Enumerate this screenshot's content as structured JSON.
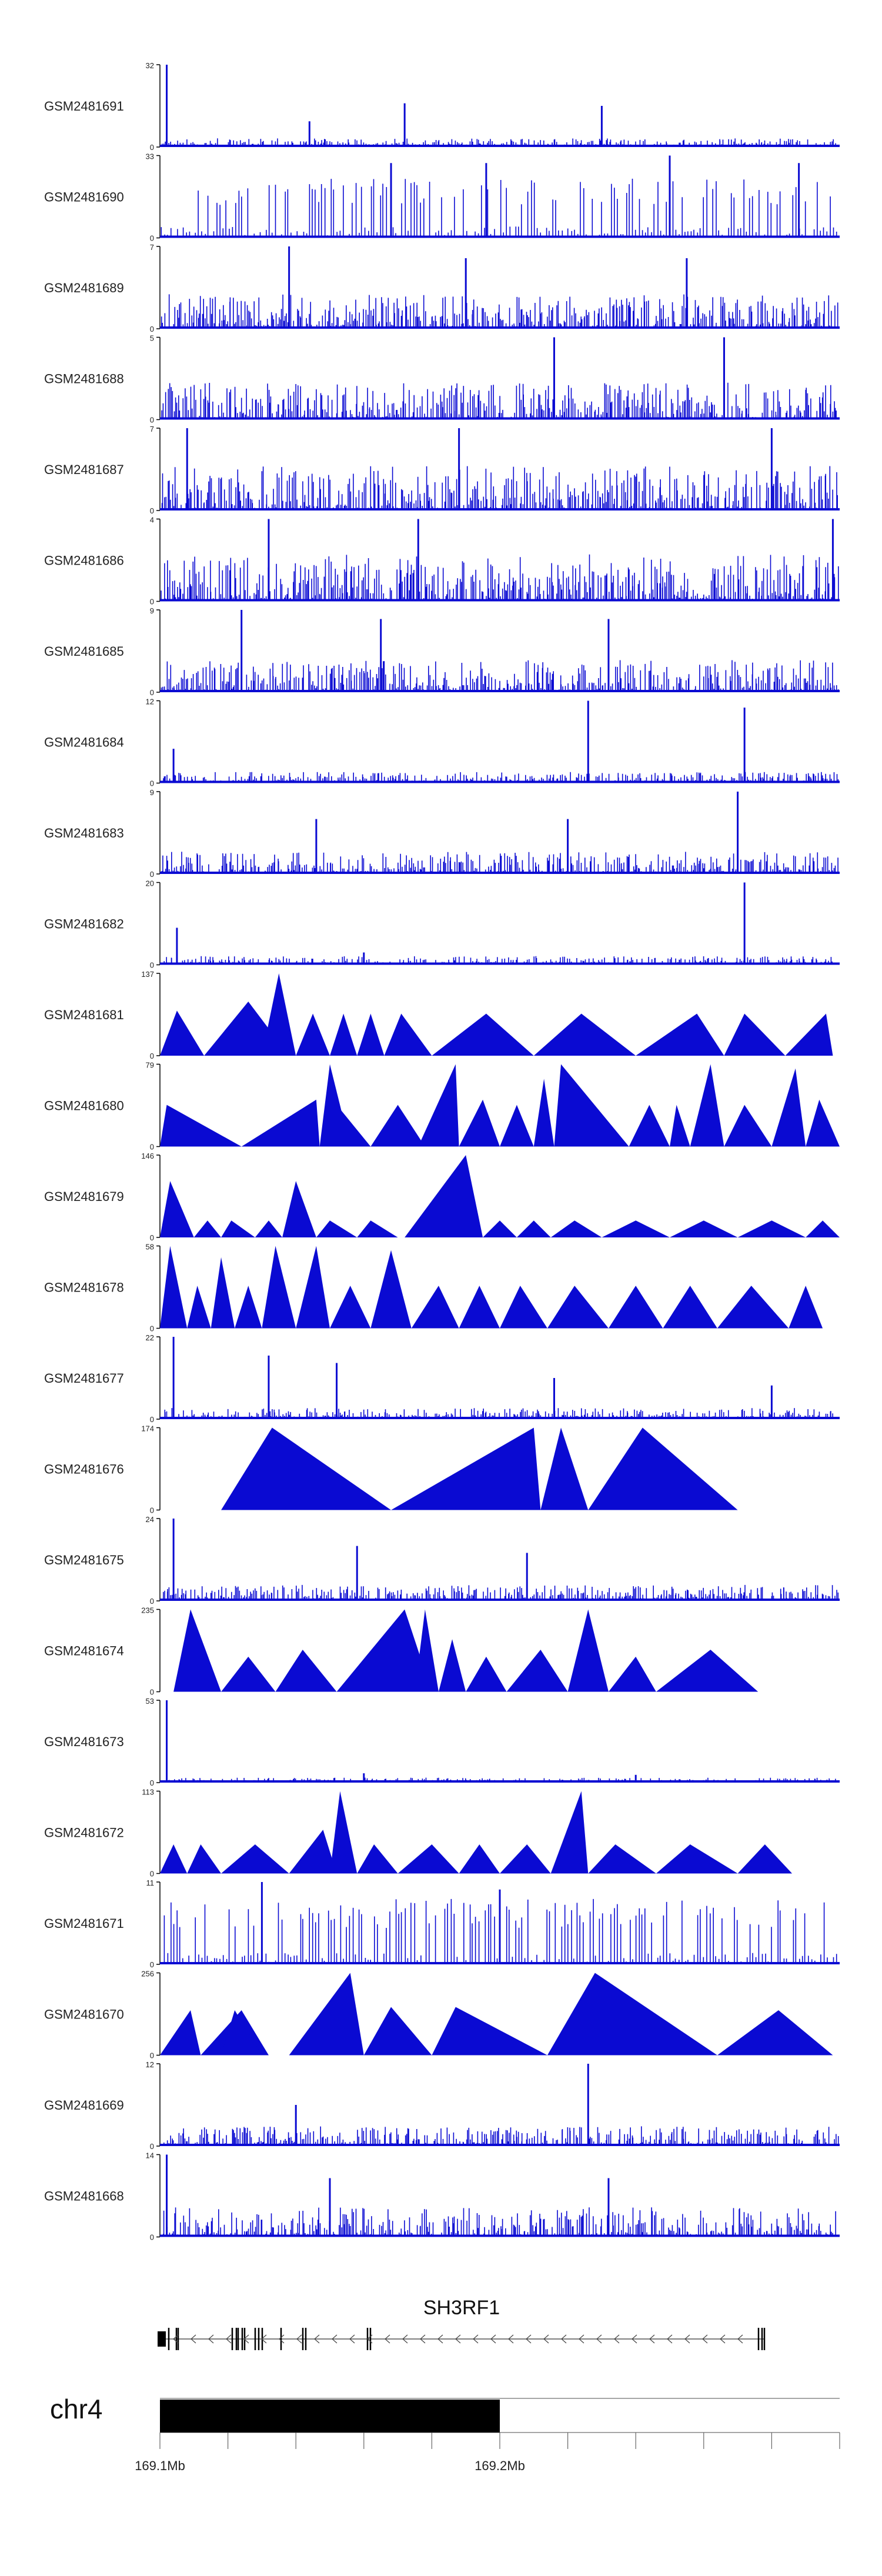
{
  "chart_data": {
    "type": "area",
    "title": "",
    "region": {
      "chrom": "chr4",
      "start_mb": 169.1,
      "end_mb": 169.3
    },
    "colors": {
      "signal": "#0a0ad2",
      "ideogram": "#000000",
      "axis": "#000000",
      "grid": "#808080"
    },
    "tracks": [
      {
        "name": "GSM2481691",
        "ymax": "32",
        "style": "dense",
        "seed": 11,
        "base": 0.07,
        "spikes": [
          [
            169.102,
            32
          ],
          [
            169.144,
            10
          ],
          [
            169.172,
            17
          ],
          [
            169.23,
            16
          ]
        ]
      },
      {
        "name": "GSM2481690",
        "ymax": "33",
        "style": "sparse",
        "seed": 12,
        "base": 0.45,
        "spikes": [
          [
            169.168,
            30
          ],
          [
            169.196,
            30
          ],
          [
            169.25,
            33
          ],
          [
            169.288,
            30
          ]
        ]
      },
      {
        "name": "GSM2481689",
        "ymax": "7",
        "style": "dense",
        "seed": 13,
        "base": 0.28,
        "spikes": [
          [
            169.138,
            7
          ],
          [
            169.19,
            6
          ],
          [
            169.255,
            6
          ]
        ]
      },
      {
        "name": "GSM2481688",
        "ymax": "5",
        "style": "dense",
        "seed": 14,
        "base": 0.3,
        "spikes": [
          [
            169.216,
            5
          ],
          [
            169.266,
            5
          ]
        ]
      },
      {
        "name": "GSM2481687",
        "ymax": "7",
        "style": "dense",
        "seed": 15,
        "base": 0.36,
        "spikes": [
          [
            169.108,
            7
          ],
          [
            169.188,
            7
          ],
          [
            169.28,
            7
          ]
        ]
      },
      {
        "name": "GSM2481686",
        "ymax": "4",
        "style": "dense",
        "seed": 16,
        "base": 0.38,
        "spikes": [
          [
            169.132,
            4
          ],
          [
            169.176,
            4
          ],
          [
            169.298,
            4
          ]
        ]
      },
      {
        "name": "GSM2481685",
        "ymax": "9",
        "style": "dense",
        "seed": 17,
        "base": 0.26,
        "spikes": [
          [
            169.124,
            9
          ],
          [
            169.165,
            8
          ],
          [
            169.232,
            8
          ]
        ]
      },
      {
        "name": "GSM2481684",
        "ymax": "12",
        "style": "dense",
        "seed": 18,
        "base": 0.09,
        "spikes": [
          [
            169.104,
            5
          ],
          [
            169.226,
            12
          ],
          [
            169.272,
            11
          ]
        ]
      },
      {
        "name": "GSM2481683",
        "ymax": "9",
        "style": "dense",
        "seed": 19,
        "base": 0.18,
        "spikes": [
          [
            169.146,
            6
          ],
          [
            169.22,
            6
          ],
          [
            169.27,
            9
          ]
        ]
      },
      {
        "name": "GSM2481682",
        "ymax": "20",
        "style": "dense",
        "seed": 20,
        "base": 0.07,
        "spikes": [
          [
            169.105,
            9
          ],
          [
            169.16,
            3
          ],
          [
            169.272,
            20
          ]
        ]
      },
      {
        "name": "GSM2481681",
        "ymax": "137",
        "style": "triangles",
        "seed": 21,
        "peaks": [
          [
            169.1,
            169.105,
            169.113,
            75
          ],
          [
            169.113,
            169.126,
            169.138,
            90
          ],
          [
            169.13,
            169.135,
            169.14,
            137
          ],
          [
            169.14,
            169.145,
            169.15,
            70
          ],
          [
            169.15,
            169.154,
            169.158,
            70
          ],
          [
            169.158,
            169.162,
            169.166,
            70
          ],
          [
            169.166,
            169.171,
            169.18,
            70
          ],
          [
            169.18,
            169.196,
            169.21,
            70
          ],
          [
            169.21,
            169.224,
            169.24,
            70
          ],
          [
            169.24,
            169.258,
            169.266,
            70
          ],
          [
            169.266,
            169.272,
            169.284,
            70
          ],
          [
            169.284,
            169.296,
            169.298,
            70
          ]
        ]
      },
      {
        "name": "GSM2481680",
        "ymax": "79",
        "style": "triangles",
        "seed": 22,
        "peaks": [
          [
            169.1,
            169.102,
            169.124,
            40
          ],
          [
            169.124,
            169.146,
            169.147,
            45
          ],
          [
            169.147,
            169.15,
            169.156,
            79
          ],
          [
            169.15,
            169.152,
            169.162,
            40
          ],
          [
            169.162,
            169.17,
            169.178,
            40
          ],
          [
            169.176,
            169.187,
            169.188,
            79
          ],
          [
            169.188,
            169.195,
            169.2,
            45
          ],
          [
            169.2,
            169.205,
            169.21,
            40
          ],
          [
            169.21,
            169.213,
            169.216,
            65
          ],
          [
            169.216,
            169.218,
            169.238,
            79
          ],
          [
            169.238,
            169.244,
            169.25,
            40
          ],
          [
            169.25,
            169.252,
            169.256,
            40
          ],
          [
            169.256,
            169.262,
            169.266,
            79
          ],
          [
            169.266,
            169.272,
            169.28,
            40
          ],
          [
            169.28,
            169.287,
            169.29,
            75
          ],
          [
            169.29,
            169.294,
            169.3,
            45
          ]
        ]
      },
      {
        "name": "GSM2481679",
        "ymax": "146",
        "style": "triangles",
        "seed": 23,
        "peaks": [
          [
            169.1,
            169.103,
            169.11,
            100
          ],
          [
            169.11,
            169.114,
            169.118,
            30
          ],
          [
            169.118,
            169.121,
            169.128,
            30
          ],
          [
            169.128,
            169.132,
            169.136,
            30
          ],
          [
            169.136,
            169.14,
            169.146,
            100
          ],
          [
            169.146,
            169.15,
            169.158,
            30
          ],
          [
            169.158,
            169.162,
            169.17,
            30
          ],
          [
            169.172,
            169.19,
            169.195,
            146
          ],
          [
            169.195,
            169.2,
            169.205,
            30
          ],
          [
            169.205,
            169.21,
            169.215,
            30
          ],
          [
            169.215,
            169.222,
            169.23,
            30
          ],
          [
            169.23,
            169.24,
            169.25,
            30
          ],
          [
            169.25,
            169.26,
            169.27,
            30
          ],
          [
            169.27,
            169.28,
            169.29,
            30
          ],
          [
            169.29,
            169.295,
            169.3,
            30
          ]
        ]
      },
      {
        "name": "GSM2481678",
        "ymax": "58",
        "style": "triangles",
        "seed": 24,
        "peaks": [
          [
            169.1,
            169.103,
            169.108,
            58
          ],
          [
            169.108,
            169.111,
            169.115,
            30
          ],
          [
            169.115,
            169.118,
            169.122,
            50
          ],
          [
            169.122,
            169.126,
            169.13,
            30
          ],
          [
            169.13,
            169.134,
            169.14,
            58
          ],
          [
            169.14,
            169.146,
            169.15,
            58
          ],
          [
            169.15,
            169.156,
            169.162,
            30
          ],
          [
            169.162,
            169.168,
            169.174,
            55
          ],
          [
            169.174,
            169.182,
            169.188,
            30
          ],
          [
            169.188,
            169.194,
            169.2,
            30
          ],
          [
            169.2,
            169.206,
            169.214,
            30
          ],
          [
            169.214,
            169.222,
            169.232,
            30
          ],
          [
            169.232,
            169.24,
            169.248,
            30
          ],
          [
            169.248,
            169.256,
            169.264,
            30
          ],
          [
            169.264,
            169.274,
            169.285,
            30
          ],
          [
            169.285,
            169.29,
            169.295,
            30
          ]
        ]
      },
      {
        "name": "GSM2481677",
        "ymax": "22",
        "style": "dense",
        "seed": 25,
        "base": 0.09,
        "spikes": [
          [
            169.104,
            22
          ],
          [
            169.132,
            17
          ],
          [
            169.152,
            15
          ],
          [
            169.216,
            11
          ],
          [
            169.28,
            9
          ]
        ]
      },
      {
        "name": "GSM2481676",
        "ymax": "174",
        "style": "triangles",
        "seed": 26,
        "peaks": [
          [
            169.118,
            169.133,
            169.168,
            174
          ],
          [
            169.168,
            169.21,
            169.212,
            174
          ],
          [
            169.212,
            169.218,
            169.226,
            174
          ],
          [
            169.226,
            169.242,
            169.27,
            174
          ]
        ]
      },
      {
        "name": "GSM2481675",
        "ymax": "24",
        "style": "dense",
        "seed": 27,
        "base": 0.13,
        "spikes": [
          [
            169.104,
            24
          ],
          [
            169.158,
            16
          ],
          [
            169.208,
            14
          ]
        ]
      },
      {
        "name": "GSM2481674",
        "ymax": "235",
        "style": "triangles",
        "seed": 28,
        "peaks": [
          [
            169.104,
            169.109,
            169.118,
            235
          ],
          [
            169.118,
            169.126,
            169.134,
            100
          ],
          [
            169.134,
            169.142,
            169.152,
            120
          ],
          [
            169.152,
            169.172,
            169.18,
            235
          ],
          [
            169.175,
            169.178,
            169.182,
            235
          ],
          [
            169.182,
            169.186,
            169.19,
            150
          ],
          [
            169.19,
            169.196,
            169.202,
            100
          ],
          [
            169.202,
            169.212,
            169.22,
            120
          ],
          [
            169.22,
            169.226,
            169.232,
            235
          ],
          [
            169.232,
            169.24,
            169.246,
            100
          ],
          [
            169.246,
            169.262,
            169.276,
            120
          ]
        ]
      },
      {
        "name": "GSM2481673",
        "ymax": "53",
        "style": "dense",
        "seed": 29,
        "base": 0.04,
        "spikes": [
          [
            169.102,
            53
          ],
          [
            169.16,
            6
          ],
          [
            169.24,
            5
          ]
        ]
      },
      {
        "name": "GSM2481672",
        "ymax": "113",
        "style": "triangles",
        "seed": 30,
        "peaks": [
          [
            169.1,
            169.104,
            169.108,
            40
          ],
          [
            169.108,
            169.112,
            169.118,
            40
          ],
          [
            169.118,
            169.128,
            169.138,
            40
          ],
          [
            169.138,
            169.148,
            169.152,
            60
          ],
          [
            169.15,
            169.153,
            169.158,
            113
          ],
          [
            169.158,
            169.163,
            169.17,
            40
          ],
          [
            169.17,
            169.18,
            169.188,
            40
          ],
          [
            169.188,
            169.194,
            169.2,
            40
          ],
          [
            169.2,
            169.208,
            169.215,
            40
          ],
          [
            169.215,
            169.224,
            169.226,
            113
          ],
          [
            169.226,
            169.234,
            169.246,
            40
          ],
          [
            169.246,
            169.256,
            169.27,
            40
          ],
          [
            169.27,
            169.278,
            169.286,
            40
          ]
        ]
      },
      {
        "name": "GSM2481671",
        "ymax": "11",
        "style": "sparse",
        "seed": 31,
        "base": 0.5,
        "spikes": [
          [
            169.13,
            11
          ],
          [
            169.2,
            10
          ]
        ]
      },
      {
        "name": "GSM2481670",
        "ymax": "256",
        "style": "triangles",
        "seed": 32,
        "peaks": [
          [
            169.1,
            169.109,
            169.112,
            140
          ],
          [
            169.112,
            169.124,
            169.132,
            140
          ],
          [
            169.118,
            169.122,
            169.13,
            140
          ],
          [
            169.138,
            169.156,
            169.16,
            256
          ],
          [
            169.16,
            169.168,
            169.18,
            150
          ],
          [
            169.18,
            169.187,
            169.214,
            150
          ],
          [
            169.214,
            169.228,
            169.264,
            256
          ],
          [
            169.264,
            169.282,
            169.298,
            140
          ]
        ]
      },
      {
        "name": "GSM2481669",
        "ymax": "12",
        "style": "dense",
        "seed": 33,
        "base": 0.16,
        "spikes": [
          [
            169.226,
            12
          ],
          [
            169.14,
            6
          ]
        ]
      },
      {
        "name": "GSM2481668",
        "ymax": "14",
        "style": "dense",
        "seed": 34,
        "base": 0.24,
        "spikes": [
          [
            169.102,
            14
          ],
          [
            169.15,
            10
          ],
          [
            169.232,
            10
          ]
        ]
      }
    ],
    "gene": {
      "name": "SH3RF1",
      "strand": "-"
    },
    "ideogram": {
      "chrom_label": "chr4",
      "band_start_mb": 169.1,
      "band_end_mb": 169.2,
      "tick_labels": [
        "169.1Mb",
        "169.2Mb"
      ]
    }
  }
}
